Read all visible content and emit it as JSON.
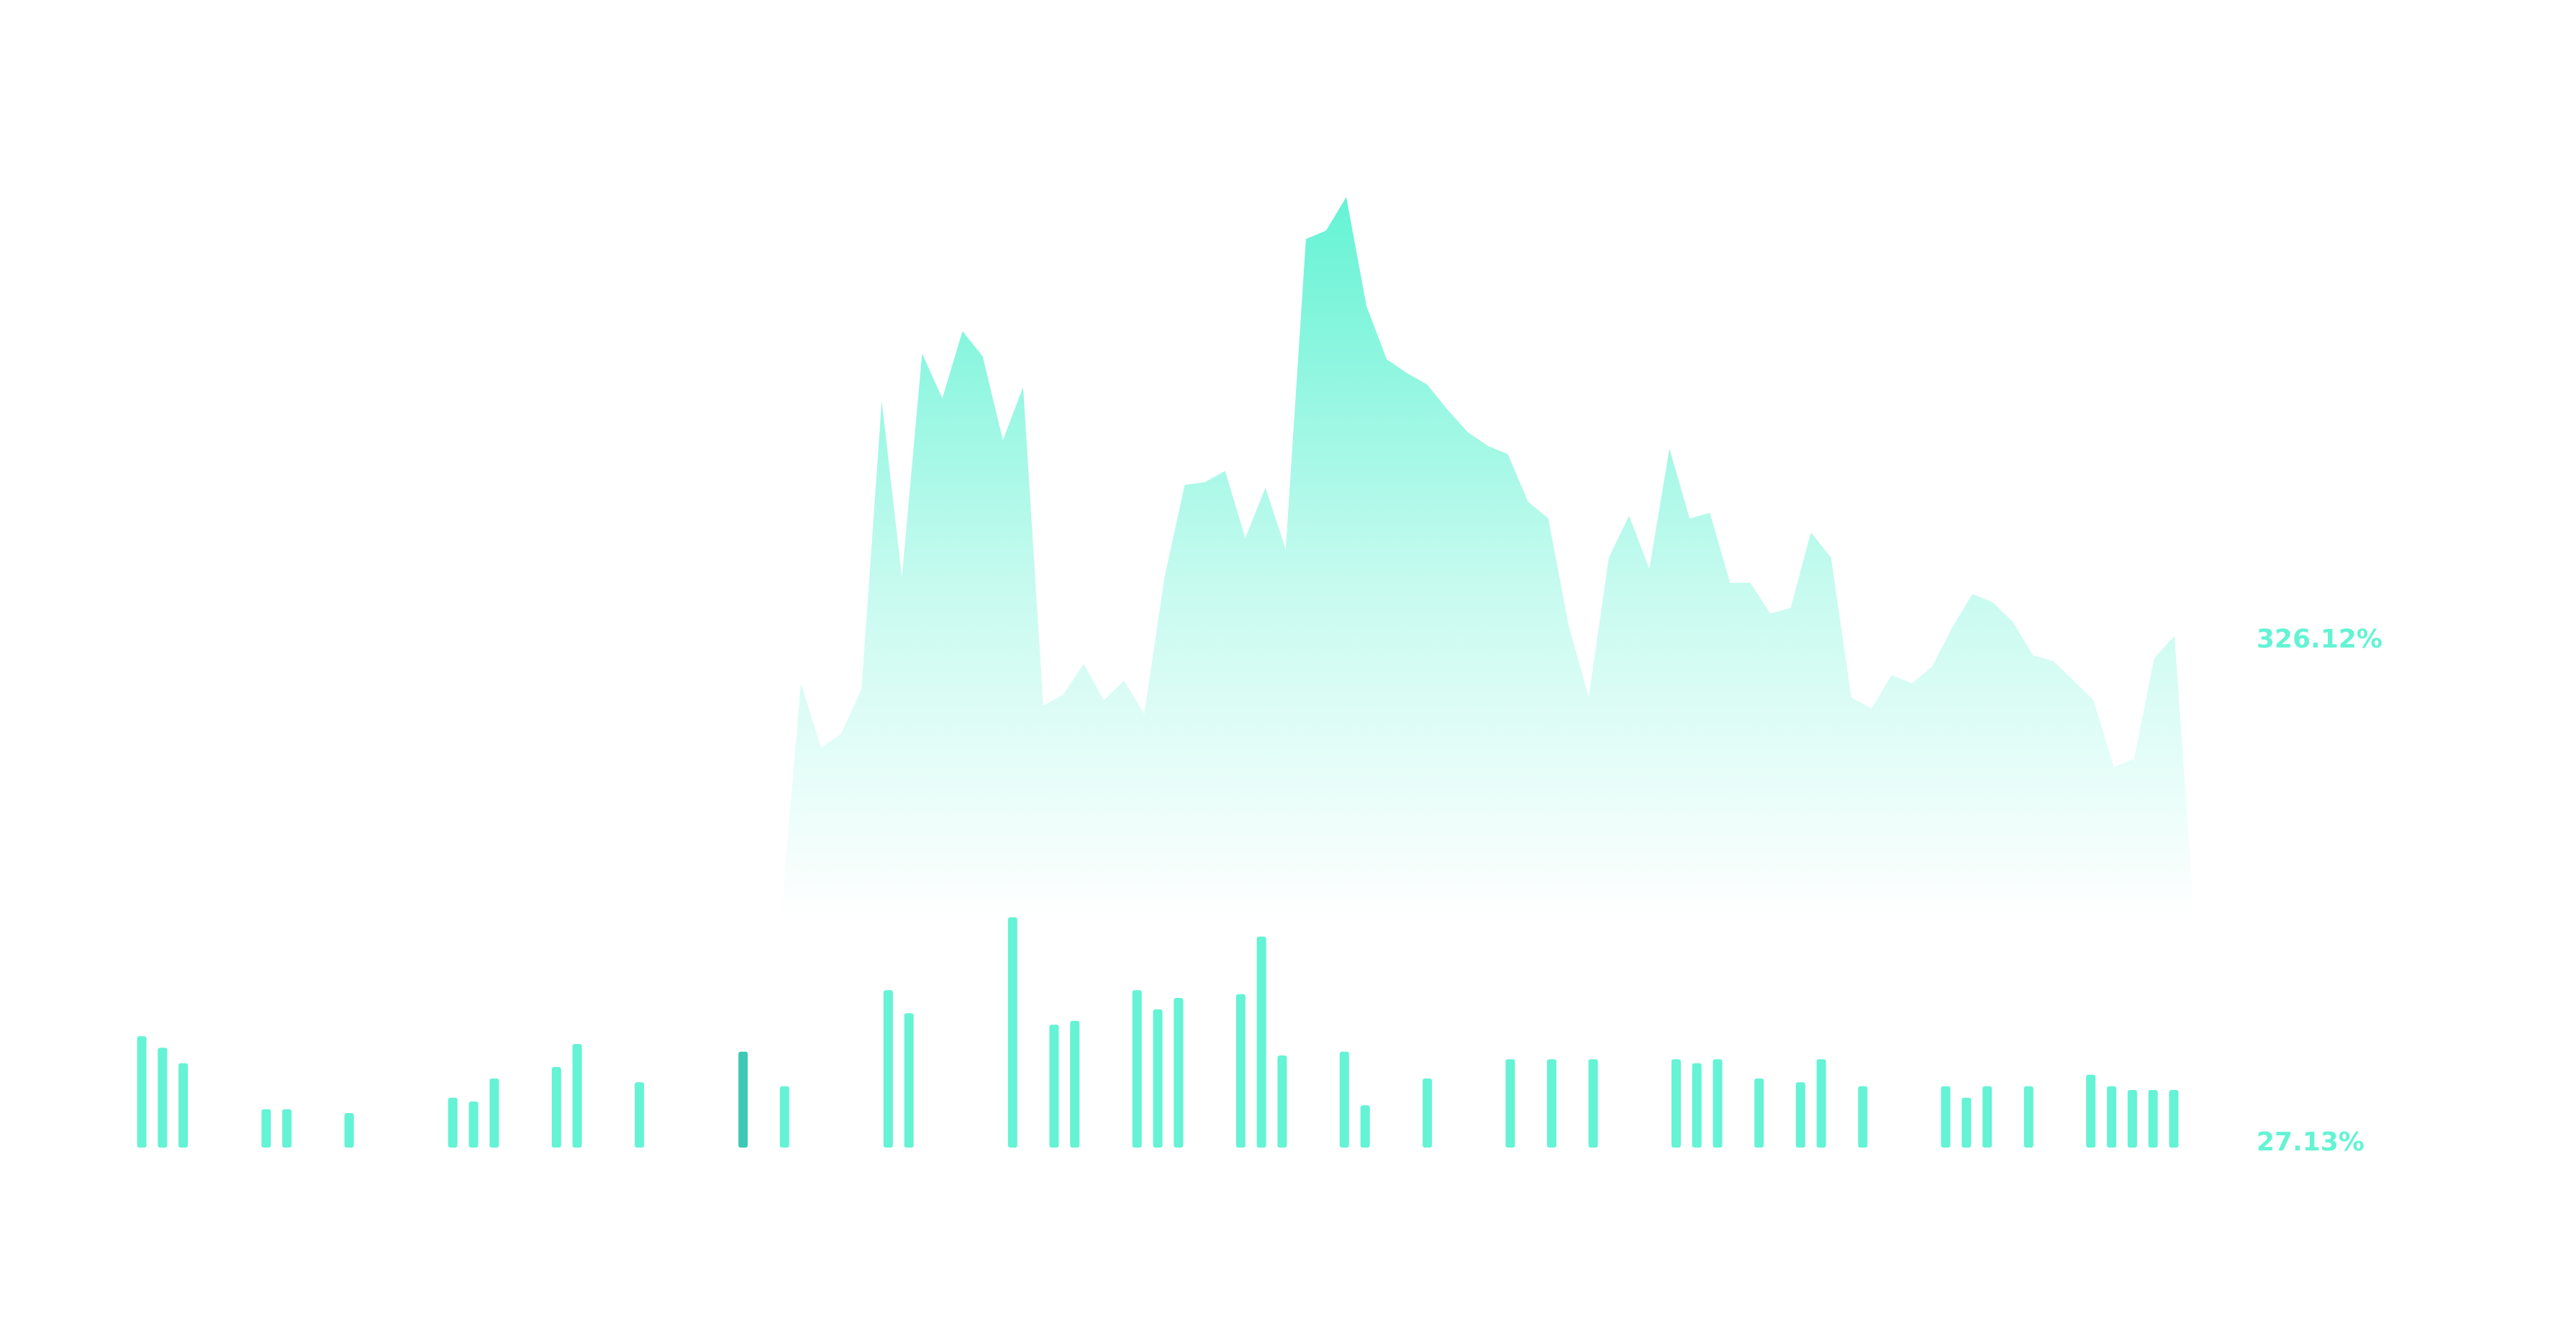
{
  "colors": {
    "accent": "#64F3D4",
    "accent_dark": "#3CC8B5",
    "background": "#FFFFFF"
  },
  "chart_data": [
    {
      "type": "area",
      "label": "326.12%",
      "x": [
        0,
        1,
        2,
        3,
        4,
        5,
        6,
        7,
        8,
        9,
        10,
        11,
        12,
        13,
        14,
        15,
        16,
        17,
        18,
        19,
        20,
        21,
        22,
        23,
        24,
        25,
        26,
        27,
        28,
        29,
        30,
        31,
        32,
        33,
        34,
        35,
        36,
        37,
        38,
        39,
        40,
        41,
        42,
        43,
        44,
        45,
        46,
        47,
        48,
        49,
        50,
        51,
        52,
        53,
        54,
        55,
        56,
        57,
        58,
        59,
        60,
        61,
        62,
        63,
        64,
        65,
        66,
        67,
        68,
        69,
        70
      ],
      "values": [
        0,
        85,
        62,
        67,
        83,
        186,
        123,
        203,
        187,
        211,
        202,
        172,
        191,
        77,
        81,
        92,
        79,
        86,
        74,
        123,
        156,
        157,
        161,
        137,
        155,
        133,
        244,
        247,
        259,
        220,
        201,
        196,
        192,
        183,
        175,
        170,
        167,
        150,
        144,
        106,
        80,
        130,
        145,
        126,
        169,
        144,
        146,
        121,
        121,
        110,
        112,
        139,
        130,
        80,
        76,
        88,
        85,
        91,
        105,
        117,
        114,
        107,
        95,
        93,
        86,
        79,
        55,
        58,
        94,
        102,
        0
      ],
      "ylim": [
        0,
        260
      ]
    },
    {
      "type": "bar",
      "label": "27.13%",
      "x": [
        0,
        1,
        2,
        6,
        7,
        10,
        15,
        16,
        17,
        20,
        21,
        24,
        29,
        31,
        36,
        37,
        42,
        44,
        45,
        48,
        49,
        50,
        53,
        54,
        55,
        58,
        59,
        62,
        66,
        68,
        70,
        74,
        75,
        76,
        78,
        80,
        81,
        83,
        87,
        88,
        89,
        91,
        94,
        95,
        96,
        97,
        98
      ],
      "values": [
        29,
        26,
        22,
        10,
        10,
        9,
        13,
        12,
        18,
        21,
        27,
        17,
        25,
        16,
        41,
        35,
        60,
        32,
        33,
        41,
        36,
        39,
        40,
        55,
        24,
        25,
        11,
        18,
        23,
        23,
        23,
        23,
        22,
        23,
        18,
        17,
        23,
        16,
        16,
        13,
        16,
        16,
        19,
        16,
        15,
        15,
        15
      ],
      "highlight_index": 12,
      "ylim": [
        0,
        60
      ]
    }
  ]
}
